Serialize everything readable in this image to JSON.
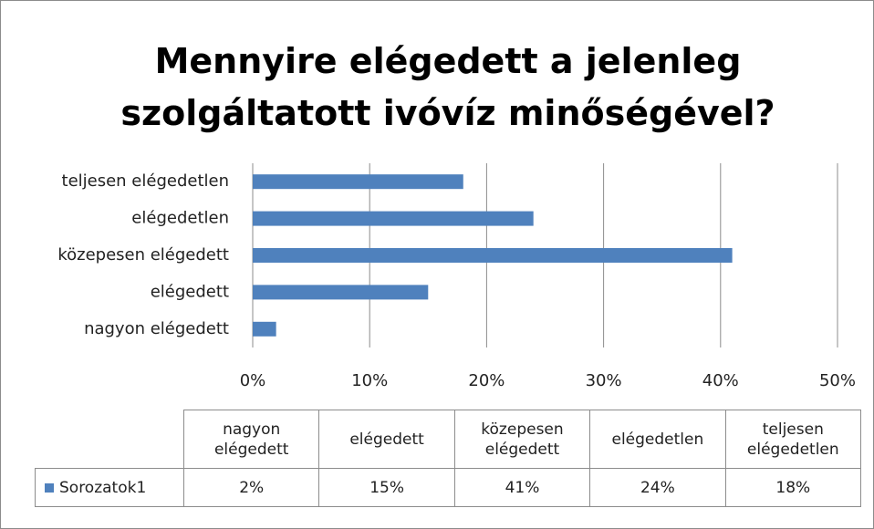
{
  "chart_data": {
    "type": "bar",
    "orientation": "horizontal",
    "title": "Mennyire elégedett a jelenleg szolgáltatott ivóvíz minőségével?",
    "categories": [
      "nagyon elégedett",
      "elégedett",
      "közepesen elégedett",
      "elégedetlen",
      "teljesen elégedetlen"
    ],
    "series": [
      {
        "name": "Sorozatok1",
        "color": "#4f81bd",
        "values": [
          2,
          15,
          41,
          24,
          18
        ],
        "value_labels": [
          "2%",
          "15%",
          "41%",
          "24%",
          "18%"
        ]
      }
    ],
    "xlim": [
      0,
      50
    ],
    "xticks": [
      {
        "value": 0,
        "label": "0%"
      },
      {
        "value": 10,
        "label": "10%"
      },
      {
        "value": 20,
        "label": "20%"
      },
      {
        "value": 30,
        "label": "30%"
      },
      {
        "value": 40,
        "label": "40%"
      },
      {
        "value": 50,
        "label": "50%"
      }
    ],
    "grid": true,
    "data_table": true
  }
}
